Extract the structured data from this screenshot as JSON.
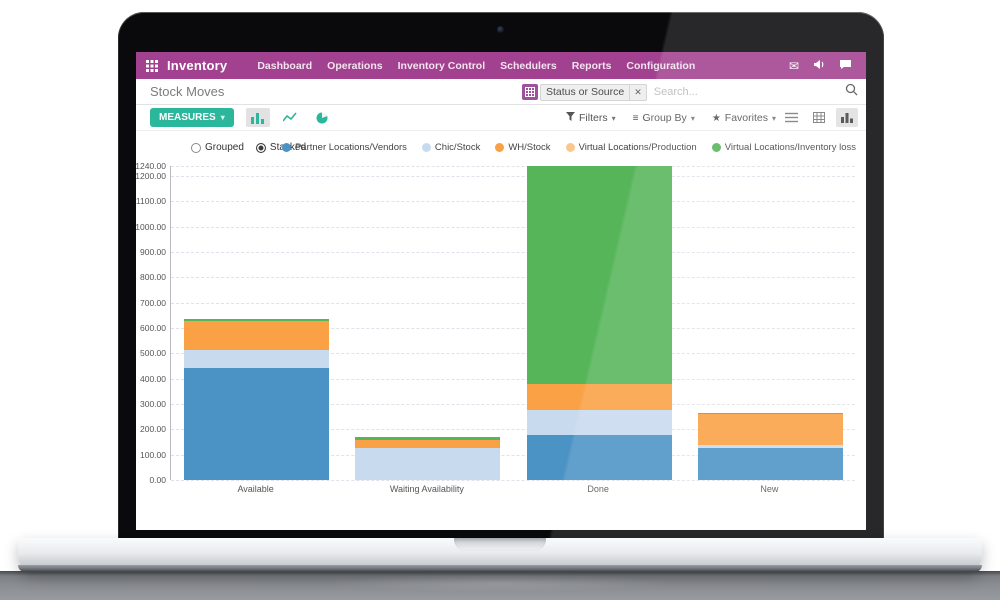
{
  "colors": {
    "nav_purple": "#a2418f",
    "accent_teal": "#2bb79b",
    "facet_purple": "#a0519b"
  },
  "icons": {
    "caret_down": "▾",
    "envelope": "✉",
    "star": "★",
    "group_by": "≡",
    "close": "✕"
  },
  "nav": {
    "app_name": "Inventory",
    "items": [
      "Dashboard",
      "Operations",
      "Inventory Control",
      "Schedulers",
      "Reports",
      "Configuration"
    ]
  },
  "breadcrumb": {
    "title": "Stock Moves"
  },
  "search": {
    "facet_label": "Status or Source",
    "placeholder": "Search..."
  },
  "toolbar": {
    "measures_label": "MEASURES",
    "filters_label": "Filters",
    "group_by_label": "Group By",
    "favorites_label": "Favorites"
  },
  "chart_data": {
    "type": "bar",
    "mode_options": [
      "Grouped",
      "Stacked"
    ],
    "selected_mode": "Stacked",
    "categories": [
      "Available",
      "Waiting Availability",
      "Done",
      "New"
    ],
    "series": [
      {
        "name": "Partner Locations/Vendors",
        "color": "#4b92c5",
        "values": [
          443,
          0,
          178,
          127
        ]
      },
      {
        "name": "Chic/Stock",
        "color": "#c8daee",
        "values": [
          72,
          125,
          99,
          12
        ]
      },
      {
        "name": "WH/Stock",
        "color": "#f9a144",
        "values": [
          112,
          35,
          104,
          122
        ]
      },
      {
        "name": "Virtual Locations/Production",
        "color": "#fbc78e",
        "values": [
          0,
          0,
          0,
          0
        ]
      },
      {
        "name": "Virtual Locations/Inventory loss",
        "color": "#56b559",
        "values": [
          8,
          8,
          859,
          4
        ]
      }
    ],
    "ylim": [
      0,
      1240
    ],
    "yticks": [
      0,
      100,
      200,
      300,
      400,
      500,
      600,
      700,
      800,
      900,
      1000,
      1100,
      1200,
      1240
    ],
    "ytick_decimals": 2,
    "grid": true,
    "legend_position": "top-right",
    "xlabel": "",
    "ylabel": ""
  }
}
